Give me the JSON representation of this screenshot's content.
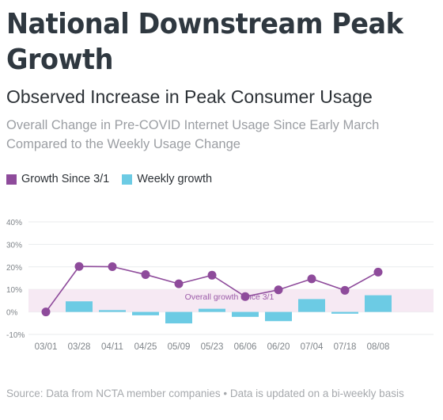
{
  "header": {
    "title": "National Downstream Peak Growth",
    "subtitle": "Observed Increase in Peak Consumer Usage",
    "description": "Overall Change in Pre-COVID Internet Usage Since Early March Compared to the Weekly Usage Change"
  },
  "footer": {
    "source": "Source: Data from NCTA member companies • Data is updated on a bi-weekly basis"
  },
  "colors": {
    "line": "#8e4b9b",
    "bar": "#6ccbe4",
    "band": "#f6e9f3",
    "band_label": "#9b5aa8",
    "grid": "#e9ebee",
    "axis_text": "#7f8489"
  },
  "chart_data": {
    "type": "bar+line",
    "categories": [
      "03/01",
      "03/28",
      "04/11",
      "04/25",
      "05/09",
      "05/23",
      "06/06",
      "06/20",
      "07/04",
      "07/18",
      "08/08"
    ],
    "series": [
      {
        "name": "Growth Since 3/1",
        "type": "line",
        "values": [
          0,
          20.2,
          20.1,
          16.6,
          12.5,
          16.3,
          6.8,
          9.8,
          14.7,
          9.6,
          17.7
        ]
      },
      {
        "name": "Weekly growth",
        "type": "bar",
        "values": [
          null,
          4.7,
          0.8,
          -1.5,
          -5.1,
          1.4,
          -2.2,
          -4.1,
          5.7,
          -0.8,
          7.4
        ]
      }
    ],
    "yticks": [
      "40%",
      "30%",
      "20%",
      "10%",
      "0%",
      "-10%"
    ],
    "ylim": [
      -10,
      40
    ],
    "grid": true,
    "legend_position": "top-left",
    "band": {
      "from": 0,
      "to": 10,
      "label": "Overall growth since 3/1"
    }
  }
}
